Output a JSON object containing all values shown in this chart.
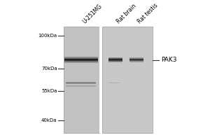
{
  "background_color": "#ffffff",
  "gel_bg": "#c8c8c8",
  "marker_line_color": "#333333",
  "text_color": "#000000",
  "sample_labels": [
    "U-251MG",
    "Rat brain",
    "Rat testis"
  ],
  "marker_labels": [
    "100kDa",
    "70kDa",
    "55kDa",
    "40kDa"
  ],
  "marker_kdas": [
    100,
    70,
    55,
    40
  ],
  "protein_label": "PAK3",
  "main_band_kda": 77,
  "secondary_band_kda": 60,
  "label_fontsize": 5.5,
  "marker_fontsize": 5.0,
  "protein_fontsize": 6.5
}
